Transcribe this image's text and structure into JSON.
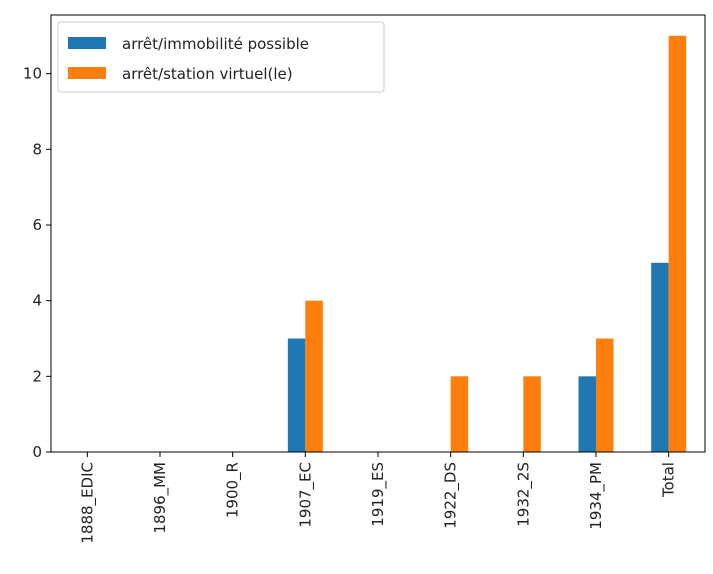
{
  "chart_data": {
    "type": "bar",
    "categories": [
      "1888_EDIC",
      "1896_MM",
      "1900_R",
      "1907_EC",
      "1919_ES",
      "1922_DS",
      "1932_2S",
      "1934_PM",
      "Total"
    ],
    "series": [
      {
        "name": "arrêt/immobilité possible",
        "values": [
          0,
          0,
          0,
          3,
          0,
          0,
          0,
          2,
          5
        ],
        "color": "#1f77b4"
      },
      {
        "name": "arrêt/station virtuel(le)",
        "values": [
          0,
          0,
          0,
          4,
          0,
          2,
          2,
          3,
          11
        ],
        "color": "#ff7f0e"
      }
    ],
    "yticks": [
      0,
      2,
      4,
      6,
      8,
      10
    ],
    "ylim": [
      0,
      11.55
    ],
    "grid": false,
    "legend_position": "top-left"
  }
}
